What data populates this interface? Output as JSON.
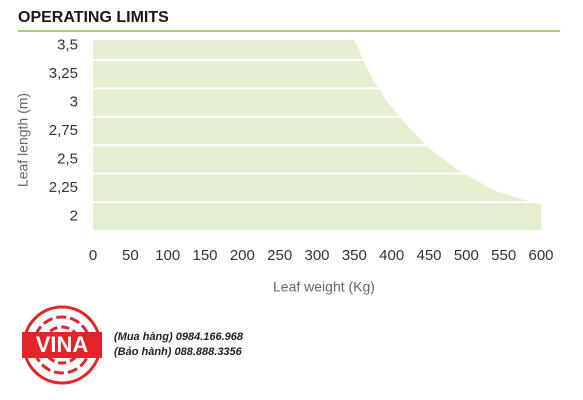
{
  "chart_data": {
    "type": "area",
    "title": "OPERATING LIMITS",
    "x_label": "Leaf weight (Kg)",
    "y_label": "Leaf length (m)",
    "x": [
      350,
      360,
      375,
      395,
      420,
      450,
      490,
      540,
      600,
      600
    ],
    "values": [
      3.55,
      3.4,
      3.2,
      3.0,
      2.8,
      2.6,
      2.4,
      2.22,
      2.1,
      1.88
    ],
    "color": "#e3efcf",
    "xlim": [
      0,
      600
    ],
    "xticks": [
      0,
      50,
      100,
      150,
      200,
      250,
      300,
      350,
      400,
      450,
      500,
      550,
      600
    ],
    "ylim": [
      1.88,
      3.55
    ],
    "yticks": [
      {
        "value": 3.5,
        "label": "3,5"
      },
      {
        "value": 3.25,
        "label": "3,25"
      },
      3,
      {
        "value": 2.75,
        "label": "2,75"
      },
      {
        "value": 2.5,
        "label": "2,5"
      },
      {
        "value": 2.25,
        "label": "2,25"
      },
      2
    ],
    "grid": true
  },
  "watermark": {
    "logo": "VINA",
    "lines": [
      "(Mua hàng) 0984.166.968",
      "(Bảo hành) 088.888.3356"
    ]
  }
}
